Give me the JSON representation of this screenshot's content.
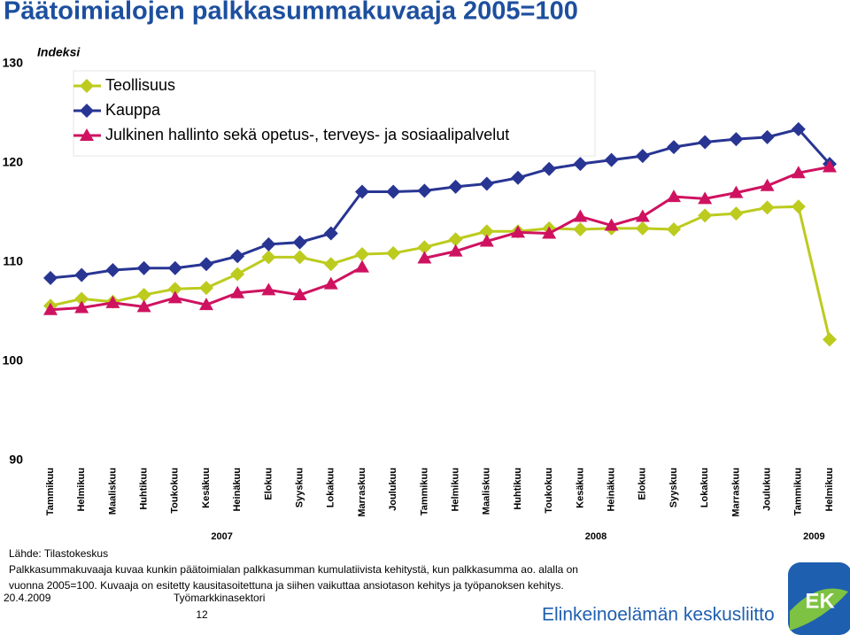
{
  "chart_data": {
    "type": "line",
    "title": "Päätoimialojen palkkasummakuvaaja 2005=100",
    "y_label": "Indeksi",
    "categories": [
      "Tammikuu",
      "Helmikuu",
      "Maaliskuu",
      "Huhtikuu",
      "Toukokuu",
      "Kesäkuu",
      "Heinäkuu",
      "Elokuu",
      "Syyskuu",
      "Lokakuu",
      "Marraskuu",
      "Joulukuu",
      "Tammikuu",
      "Helmikuu",
      "Maaliskuu",
      "Huhtikuu",
      "Toukokuu",
      "Kesäkuu",
      "Heinäkuu",
      "Elokuu",
      "Syyskuu",
      "Lokakuu",
      "Marraskuu",
      "Joulukuu",
      "Tammikuu",
      "Helmikuu"
    ],
    "x_groups": [
      "2007",
      "2008",
      "2009"
    ],
    "series": [
      {
        "name": "Teollisuus",
        "color": "#bccb1e",
        "marker": "diamond",
        "values": [
          105.6,
          106.3,
          106.0,
          106.7,
          107.3,
          107.4,
          108.8,
          110.5,
          110.5,
          109.8,
          110.8,
          110.9,
          111.5,
          112.3,
          113.1,
          113.1,
          113.4,
          113.3,
          113.4,
          113.4,
          113.3,
          114.7,
          114.9,
          115.5,
          115.6,
          102.2
        ]
      },
      {
        "name": "Kauppa",
        "color": "#283593",
        "marker": "diamond",
        "values": [
          108.4,
          108.7,
          109.2,
          109.4,
          109.4,
          109.8,
          110.6,
          111.8,
          112.0,
          112.9,
          117.1,
          117.1,
          117.2,
          117.6,
          117.9,
          118.5,
          119.4,
          119.9,
          120.3,
          120.7,
          121.6,
          122.1,
          122.4,
          122.6,
          123.4,
          119.9
        ]
      },
      {
        "name": "Julkinen hallinto sekä opetus-, terveys- ja sosiaalipalvelut",
        "color": "#cf1260",
        "marker": "triangle",
        "values": [
          105.2,
          105.4,
          105.9,
          105.5,
          106.4,
          105.7,
          106.9,
          107.2,
          106.7,
          107.8,
          109.5,
          null,
          110.4,
          111.1,
          112.1,
          113.0,
          112.9,
          114.6,
          113.7,
          114.6,
          116.6,
          116.4,
          117.0,
          117.7,
          119.0,
          119.6
        ]
      }
    ],
    "ylim": [
      90,
      130
    ],
    "yticks": [
      90,
      100,
      110,
      120,
      130
    ],
    "grid": false
  },
  "footer": {
    "source": "Lähde: Tilastokeskus",
    "note": "Palkkasummakuvaaja kuvaa kunkin päätoimialan palkkasumman kumulatiivista kehitystä, kun palkkasumma ao. alalla on vuonna 2005=100. Kuvaaja on esitetty kausitasoitettuna ja siihen vaikuttaa ansiotason kehitys ja työpanoksen kehitys.",
    "date": "20.4.2009",
    "department": "Työmarkkinasektori",
    "page": "12",
    "organization": "Elinkeinoelämän keskusliitto",
    "logo": "EK"
  }
}
